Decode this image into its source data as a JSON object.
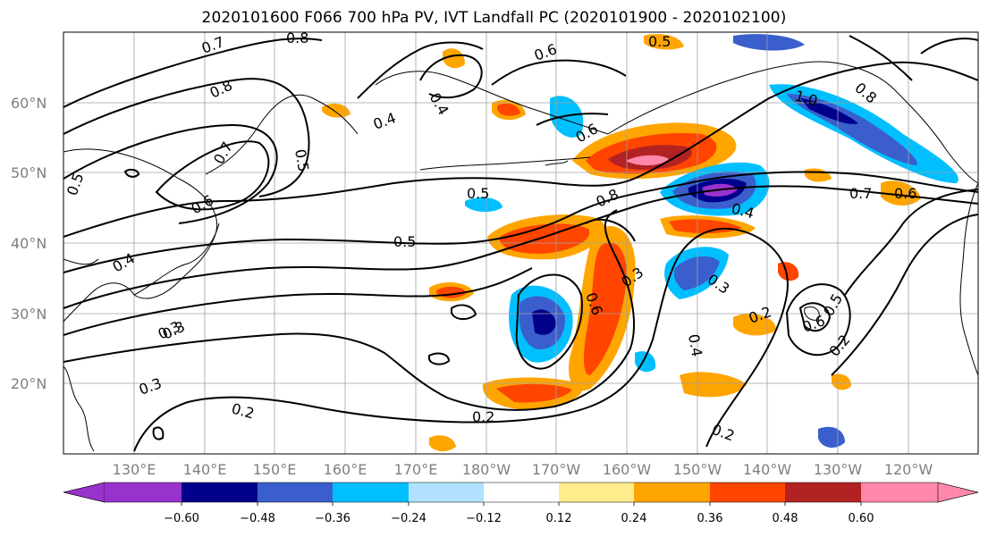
{
  "title": "2020101600 F066 700 hPa PV, IVT Landfall PC (2020101900 - 2020102100)",
  "map": {
    "lat_labels": [
      "60°N",
      "50°N",
      "40°N",
      "30°N",
      "20°N"
    ],
    "lon_labels": [
      "130°E",
      "140°E",
      "150°E",
      "160°E",
      "170°E",
      "180°W",
      "170°W",
      "160°W",
      "150°W",
      "140°W",
      "130°W",
      "120°W"
    ],
    "contour_labels": [
      "0.7",
      "0.8",
      "0.5",
      "0.6",
      "0.4",
      "0.3",
      "0.5",
      "0.8",
      "0.7",
      "0.6",
      "0.5",
      "0.4",
      "0.6",
      "1.0",
      "0.8",
      "0.5",
      "0.8",
      "0.7",
      "0.6",
      "0.4",
      "0.5",
      "0.4",
      "0.3",
      "0.3",
      "0.3",
      "0.2",
      "0.6",
      "0.3",
      "0.2",
      "0.4",
      "0.2",
      "0.6",
      "0.5",
      "0.2",
      "0.2"
    ]
  },
  "colorbar": {
    "tick_labels": [
      "−0.60",
      "−0.48",
      "−0.36",
      "−0.24",
      "−0.12",
      "0.12",
      "0.24",
      "0.36",
      "0.48",
      "0.60"
    ],
    "colors": [
      "#9932cc",
      "#00008b",
      "#3a5fcd",
      "#00bfff",
      "#b0e2ff",
      "#ffffff",
      "#ffec8b",
      "#ffa500",
      "#ff4500",
      "#b22222",
      "#ff88aa"
    ]
  }
}
